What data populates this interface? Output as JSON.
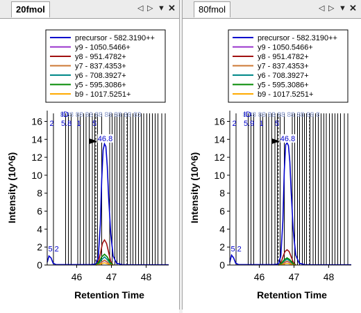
{
  "panels": [
    {
      "tab_title": "20fmol",
      "tab_bold": true,
      "controls": {
        "prev": "◁",
        "next": "▷",
        "dropdown": "▼",
        "close": "✕"
      },
      "chart_data": {
        "type": "line",
        "xlabel": "Retention Time",
        "ylabel": "Intensity (10^6)",
        "xlim": [
          45.15,
          48.65
        ],
        "ylim": [
          0,
          17.2
        ],
        "xticks": [
          46,
          47,
          48
        ],
        "yticks": [
          0,
          2,
          4,
          6,
          8,
          10,
          12,
          14,
          16
        ],
        "legend_position": "top-right",
        "peak_label": "46.8",
        "small_label": "5.2",
        "id_label": "ID",
        "id_numbers": [
          "2",
          "5.8",
          "1",
          "5"
        ],
        "id_ghost": "8 88 88 88 88 88 88 88 83",
        "series": [
          {
            "name": "precursor - 582.3190++",
            "color": "#0000cc",
            "x": [
              45.15,
              45.2,
              45.26,
              45.32,
              45.4,
              45.6,
              45.8,
              46.0,
              46.2,
              46.4,
              46.55,
              46.62,
              46.68,
              46.72,
              46.76,
              46.8,
              46.84,
              46.88,
              46.92,
              46.98,
              47.05,
              47.15,
              47.3,
              47.5,
              47.8,
              48.0,
              48.3,
              48.65
            ],
            "y": [
              0.3,
              1.0,
              0.8,
              0.2,
              0.05,
              0.05,
              0.05,
              0.05,
              0.05,
              0.05,
              0.1,
              0.8,
              4.5,
              9.5,
              12.8,
              13.5,
              13.2,
              11.0,
              7.5,
              3.5,
              1.0,
              0.2,
              0.05,
              0.02,
              0.02,
              0.02,
              0.02,
              0.02
            ]
          },
          {
            "name": "y9 - 1050.5466+",
            "color": "#9933cc",
            "x": [
              46.55,
              46.65,
              46.72,
              46.8,
              46.88,
              46.95,
              47.05
            ],
            "y": [
              0,
              0.1,
              0.3,
              0.5,
              0.3,
              0.1,
              0
            ]
          },
          {
            "name": "y8 - 951.4782+",
            "color": "#a01010",
            "x": [
              46.55,
              46.62,
              46.68,
              46.74,
              46.8,
              46.86,
              46.92,
              46.98,
              47.05
            ],
            "y": [
              0,
              0.3,
              1.2,
              2.4,
              2.8,
              2.4,
              1.4,
              0.4,
              0
            ]
          },
          {
            "name": "y7 - 837.4353+",
            "color": "#cc7733",
            "x": [
              46.55,
              46.65,
              46.72,
              46.8,
              46.88,
              46.95,
              47.05
            ],
            "y": [
              0,
              0.1,
              0.35,
              0.55,
              0.35,
              0.1,
              0
            ]
          },
          {
            "name": "y6 - 708.3927+",
            "color": "#008888",
            "x": [
              46.55,
              46.64,
              46.72,
              46.8,
              46.88,
              46.96,
              47.05
            ],
            "y": [
              0,
              0.2,
              0.6,
              0.9,
              0.6,
              0.2,
              0
            ]
          },
          {
            "name": "y5 - 595.3086+",
            "color": "#008800",
            "x": [
              46.55,
              46.64,
              46.72,
              46.8,
              46.88,
              46.96,
              47.05
            ],
            "y": [
              0,
              0.3,
              0.9,
              1.2,
              0.9,
              0.3,
              0
            ]
          },
          {
            "name": "b9 - 1017.5251+",
            "color": "#ffaa00",
            "x": [
              46.55,
              46.65,
              46.72,
              46.8,
              46.88,
              46.95,
              47.05
            ],
            "y": [
              0,
              0.05,
              0.15,
              0.25,
              0.15,
              0.05,
              0
            ]
          }
        ]
      }
    },
    {
      "tab_title": "80fmol",
      "tab_bold": false,
      "controls": {
        "prev": "◁",
        "next": "▷",
        "dropdown": "▼",
        "close": "✕"
      },
      "chart_data": {
        "type": "line",
        "xlabel": "Retention Time",
        "ylabel": "Intensity (10^6)",
        "xlim": [
          45.15,
          48.65
        ],
        "ylim": [
          0,
          17.2
        ],
        "xticks": [
          46,
          47,
          48
        ],
        "yticks": [
          0,
          2,
          4,
          6,
          8,
          10,
          12,
          14,
          16
        ],
        "legend_position": "top-right",
        "peak_label": "46.8",
        "small_label": "5.2",
        "id_label": "ID",
        "id_numbers": [
          "2",
          "5.9",
          "1",
          "5"
        ],
        "id_ghost": "8 88 88 88 88 88 88 88 8",
        "series": [
          {
            "name": "precursor - 582.3190++",
            "color": "#0000cc",
            "x": [
              45.15,
              45.2,
              45.26,
              45.32,
              45.4,
              45.6,
              45.8,
              46.0,
              46.2,
              46.4,
              46.55,
              46.62,
              46.68,
              46.72,
              46.76,
              46.8,
              46.84,
              46.88,
              46.92,
              46.98,
              47.05,
              47.15,
              47.3,
              47.5,
              47.8,
              48.0,
              48.3,
              48.65
            ],
            "y": [
              0.3,
              1.1,
              0.8,
              0.2,
              0.05,
              0.05,
              0.05,
              0.05,
              0.05,
              0.05,
              0.1,
              1.0,
              5.0,
              10.5,
              13.4,
              13.6,
              13.3,
              11.5,
              8.0,
              3.8,
              1.1,
              0.2,
              0.05,
              0.02,
              0.02,
              0.02,
              0.02,
              0.02
            ]
          },
          {
            "name": "y9 - 1050.5466+",
            "color": "#9933cc",
            "x": [
              46.55,
              46.65,
              46.72,
              46.8,
              46.88,
              46.95,
              47.05
            ],
            "y": [
              0,
              0.1,
              0.25,
              0.4,
              0.25,
              0.1,
              0
            ]
          },
          {
            "name": "y8 - 951.4782+",
            "color": "#a01010",
            "x": [
              46.55,
              46.62,
              46.68,
              46.74,
              46.8,
              46.86,
              46.92,
              46.98,
              47.05
            ],
            "y": [
              0,
              0.2,
              0.9,
              1.5,
              1.7,
              1.5,
              0.9,
              0.3,
              0
            ]
          },
          {
            "name": "y7 - 837.4353+",
            "color": "#cc7733",
            "x": [
              46.55,
              46.65,
              46.72,
              46.8,
              46.88,
              46.95,
              47.05
            ],
            "y": [
              0,
              0.1,
              0.3,
              0.45,
              0.3,
              0.1,
              0
            ]
          },
          {
            "name": "y6 - 708.3927+",
            "color": "#008888",
            "x": [
              46.55,
              46.64,
              46.72,
              46.8,
              46.88,
              46.96,
              47.05
            ],
            "y": [
              0,
              0.15,
              0.45,
              0.65,
              0.45,
              0.15,
              0
            ]
          },
          {
            "name": "y5 - 595.3086+",
            "color": "#008800",
            "x": [
              46.55,
              46.64,
              46.72,
              46.8,
              46.88,
              46.96,
              47.05
            ],
            "y": [
              0,
              0.2,
              0.6,
              0.8,
              0.6,
              0.2,
              0
            ]
          },
          {
            "name": "b9 - 1017.5251+",
            "color": "#ffaa00",
            "x": [
              46.55,
              46.65,
              46.72,
              46.8,
              46.88,
              46.95,
              47.05
            ],
            "y": [
              0,
              0.05,
              0.12,
              0.2,
              0.12,
              0.05,
              0
            ]
          }
        ]
      }
    }
  ]
}
